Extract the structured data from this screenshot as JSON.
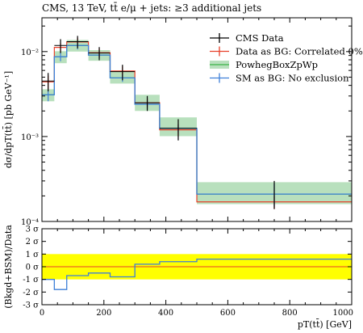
{
  "chart_data": [
    {
      "type": "line",
      "title": "CMS, 13 TeV, tt̄ e/μ + jets: ≥3 additional jets",
      "ylabel": "dσ/dpT(tt̄) [pb GeV⁻¹]",
      "xlabel": "",
      "ylog": true,
      "xlim": [
        0,
        1000
      ],
      "ylim": [
        0.0001,
        0.025
      ],
      "y_ticks": [
        {
          "label": "10⁻⁴",
          "value": 0.0001
        },
        {
          "label": "10⁻³",
          "value": 0.001
        },
        {
          "label": "10⁻²",
          "value": 0.01
        }
      ],
      "legend_position": "top-right",
      "bin_edges": [
        0,
        40,
        80,
        150,
        220,
        300,
        380,
        500,
        1000
      ],
      "series": [
        {
          "name": "CMS Data",
          "color": "#000000",
          "style": "points",
          "values": [
            0.0045,
            0.0118,
            0.0131,
            0.0096,
            0.0058,
            0.0025,
            0.00125,
            0.00021
          ],
          "err_up": [
            0.0011,
            0.0022,
            0.0022,
            0.0017,
            0.0012,
            0.0005,
            0.00035,
            9e-05
          ],
          "err_down": [
            0.0011,
            0.0022,
            0.0022,
            0.0017,
            0.0012,
            0.0005,
            0.00035,
            7e-05
          ]
        },
        {
          "name": "Data as BG: Correlated 0%",
          "color": "#e8402a",
          "style": "step",
          "values": [
            0.0044,
            0.0112,
            0.013,
            0.0097,
            0.0059,
            0.0025,
            0.0012,
            0.00017
          ],
          "err_up": [
            0.0008,
            0.0015,
            0.0015,
            0.0012,
            0.0008,
            0.0003,
            0.0002,
            3e-05
          ],
          "err_down": [
            0.0008,
            0.0015,
            0.0015,
            0.0012,
            0.0008,
            0.0003,
            0.0002,
            3e-05
          ]
        },
        {
          "name": "PowhegBoxZpWp",
          "color": "#3cb34a",
          "band_color": "#b8e0bd",
          "style": "band",
          "values": [
            0.0031,
            0.0087,
            0.0118,
            0.0091,
            0.0049,
            0.0024,
            0.00125,
            0.00021
          ],
          "band_low": [
            0.0026,
            0.0073,
            0.01,
            0.0078,
            0.0042,
            0.002,
            0.00101,
            0.00016
          ],
          "band_high": [
            0.0036,
            0.0101,
            0.0137,
            0.0104,
            0.0058,
            0.0031,
            0.00168,
            0.00029
          ]
        },
        {
          "name": "SM as BG: No exclusion",
          "color": "#3e7fd8",
          "style": "step",
          "values": [
            0.0031,
            0.0087,
            0.0118,
            0.0091,
            0.0049,
            0.0024,
            0.00125,
            0.00021
          ],
          "err_up": [
            0.0005,
            0.001,
            0.0012,
            0.0009,
            0.0005,
            0.0003,
            0.00013,
            7e-05
          ],
          "err_down": [
            0.0005,
            0.001,
            0.0012,
            0.0009,
            0.0005,
            0.0003,
            0.00013,
            6e-05
          ]
        }
      ]
    },
    {
      "type": "line",
      "ylabel": "(Bkgd+BSM)/Data",
      "xlabel": "pT(tt̄) [GeV]",
      "xlim": [
        0,
        1000
      ],
      "ylim": [
        -3,
        3
      ],
      "x_ticks": [
        {
          "label": "0",
          "value": 0
        },
        {
          "label": "200",
          "value": 200
        },
        {
          "label": "400",
          "value": 400
        },
        {
          "label": "600",
          "value": 600
        },
        {
          "label": "800",
          "value": 800
        },
        {
          "label": "1000",
          "value": 1000
        }
      ],
      "y_ticks": [
        {
          "label": "3 σ",
          "value": 3
        },
        {
          "label": "2 σ",
          "value": 2
        },
        {
          "label": "1 σ",
          "value": 1
        },
        {
          "label": "0 σ",
          "value": 0
        },
        {
          "label": "-1 σ",
          "value": -1
        },
        {
          "label": "-2 σ",
          "value": -2
        },
        {
          "label": "-3 σ",
          "value": -3
        }
      ],
      "band": {
        "low": -1,
        "high": 1,
        "color": "#ffff00"
      },
      "zero_line_color": "#e8402a",
      "bin_edges": [
        0,
        40,
        80,
        150,
        220,
        300,
        380,
        500,
        1000
      ],
      "series": [
        {
          "name": "SM as BG: No exclusion",
          "color": "#3e7fd8",
          "style": "step",
          "values": [
            -1.0,
            -1.8,
            -0.7,
            -0.5,
            -0.8,
            0.2,
            0.4,
            0.6
          ]
        }
      ]
    }
  ]
}
